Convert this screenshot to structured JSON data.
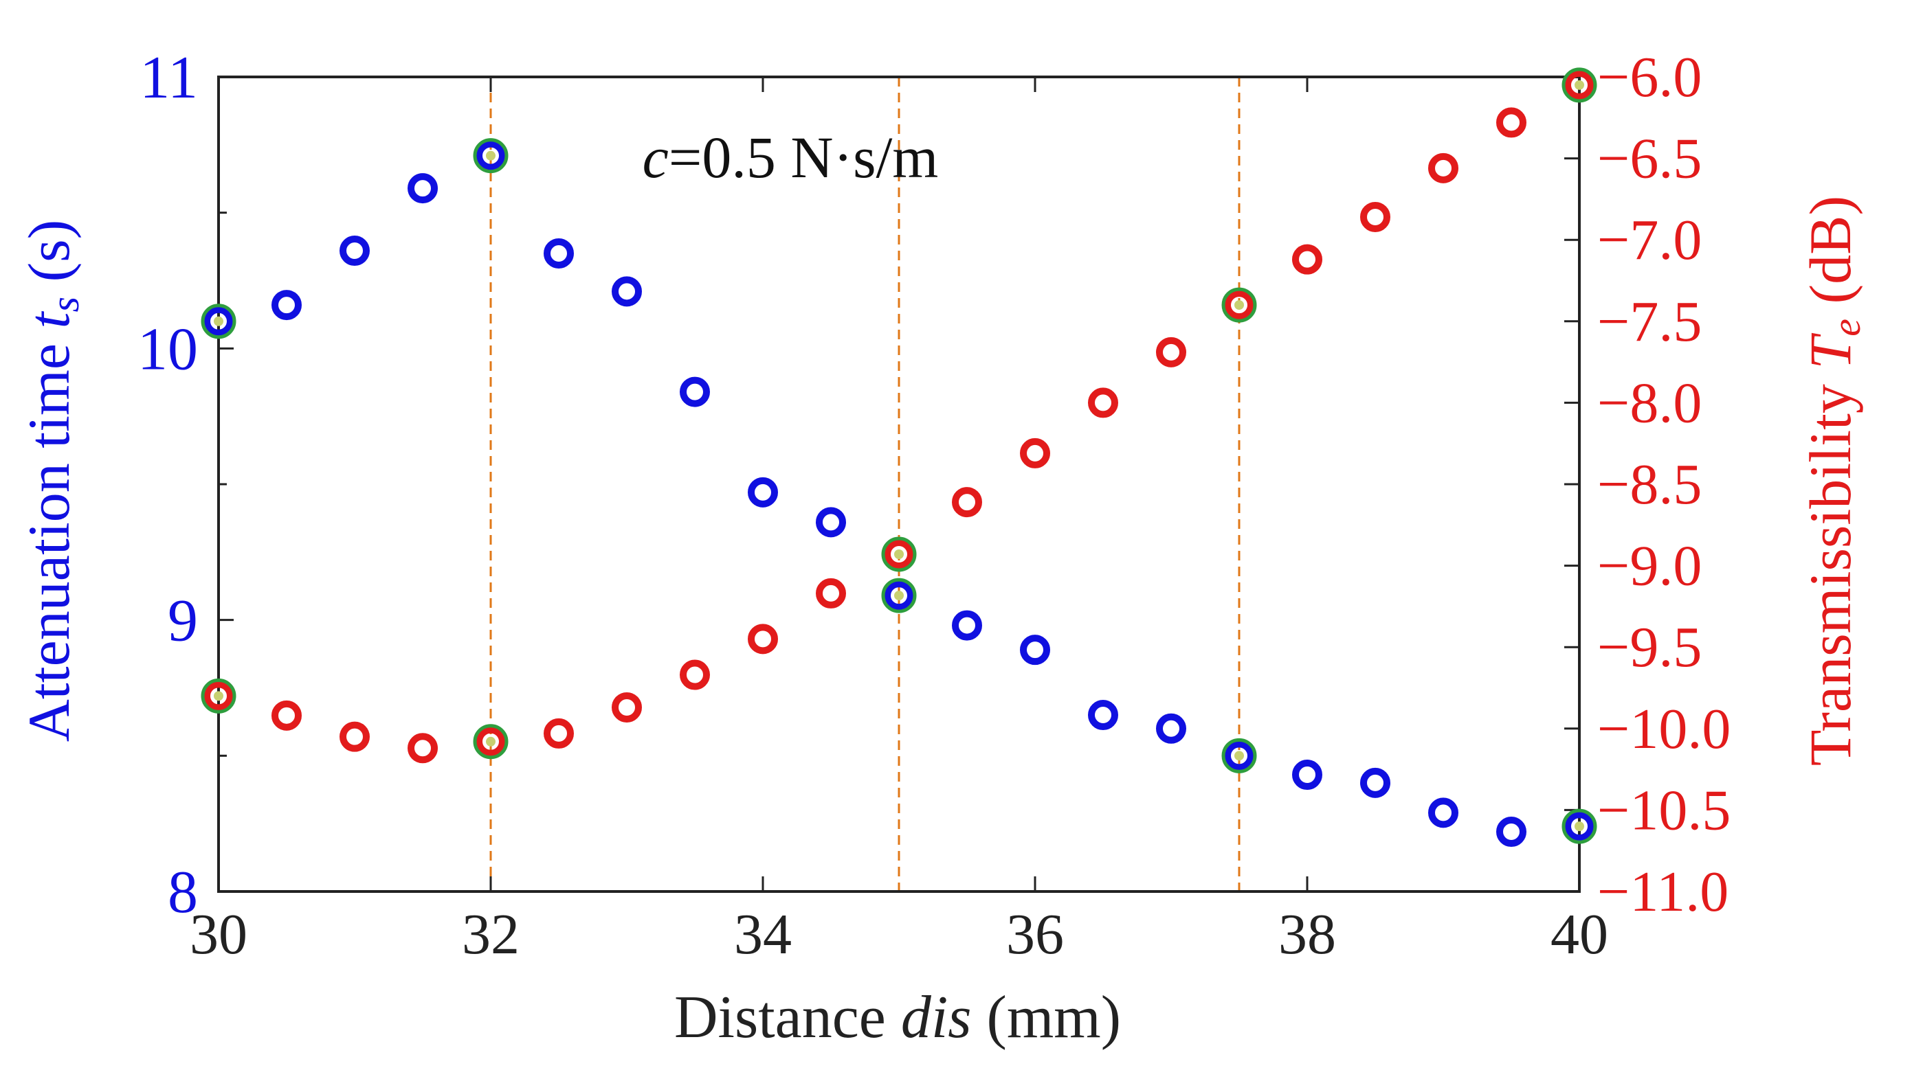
{
  "chart_data": {
    "type": "scatter",
    "annotation": {
      "italic": "c",
      "rest": "=0.5 N·s/m"
    },
    "xlabel": {
      "normal1": "Distance ",
      "italic": "dis",
      "normal2": " (mm)"
    },
    "ylabel_left": {
      "normal": "Attenuation time ",
      "italic": "t",
      "sub": "s",
      "unit": " (s)"
    },
    "ylabel_right": {
      "normal": "Transmissibility ",
      "italic": "T",
      "sub": "e",
      "unit": " (dB)"
    },
    "xlim": [
      30,
      40
    ],
    "ylim_left": [
      8,
      11
    ],
    "ylim_right": [
      -11.0,
      -6.0
    ],
    "x_ticks": [
      "30",
      "32",
      "34",
      "36",
      "38",
      "40"
    ],
    "y_left_ticks": [
      "8",
      "9",
      "10",
      "11"
    ],
    "y_right_ticks": [
      "−6.0",
      "−6.5",
      "−7.0",
      "−7.5",
      "−8.0",
      "−8.5",
      "−9.0",
      "−9.5",
      "−10.0",
      "−10.5",
      "−11.0"
    ],
    "colors": {
      "left_axis": "#1010e0",
      "right_axis": "#e21b1b",
      "axis": "#222222",
      "vline": "#e07818",
      "highlight": "#2e9e3e"
    },
    "vlines_x": [
      30,
      32,
      35,
      37.5,
      40
    ],
    "series": [
      {
        "name": "Attenuation time t_s",
        "axis": "left",
        "color": "#1010e0",
        "x": [
          30,
          30.5,
          31,
          31.5,
          32,
          32.5,
          33,
          33.5,
          34,
          34.5,
          35,
          35.5,
          36,
          36.5,
          37,
          37.5,
          38,
          38.5,
          39,
          39.5,
          40
        ],
        "y": [
          10.1,
          10.16,
          10.36,
          10.59,
          10.71,
          10.35,
          10.21,
          9.84,
          9.47,
          9.36,
          9.09,
          8.98,
          8.89,
          8.65,
          8.6,
          8.5,
          8.43,
          8.4,
          8.29,
          8.22,
          8.24
        ]
      },
      {
        "name": "Transmissibility T_e",
        "axis": "right",
        "color": "#e21b1b",
        "x": [
          30,
          30.5,
          31,
          31.5,
          32,
          32.5,
          33,
          33.5,
          34,
          34.5,
          35,
          35.5,
          36,
          36.5,
          37,
          37.5,
          38,
          38.5,
          39,
          39.5,
          40
        ],
        "y": [
          -9.8,
          -9.92,
          -10.05,
          -10.12,
          -10.08,
          -10.03,
          -9.87,
          -9.67,
          -9.45,
          -9.17,
          -8.93,
          -8.61,
          -8.31,
          -8.0,
          -7.69,
          -7.4,
          -7.12,
          -6.86,
          -6.56,
          -6.28,
          -6.05
        ]
      }
    ],
    "highlighted": [
      {
        "x": 30,
        "left_y": 10.1,
        "right_y": -9.8
      },
      {
        "x": 32,
        "left_y": 10.71,
        "right_y": -10.08
      },
      {
        "x": 35,
        "left_y": 9.09,
        "right_y": -8.93
      },
      {
        "x": 37.5,
        "left_y": 8.5,
        "right_y": -7.4
      },
      {
        "x": 40,
        "left_y": 8.24,
        "right_y": -6.05
      }
    ]
  }
}
